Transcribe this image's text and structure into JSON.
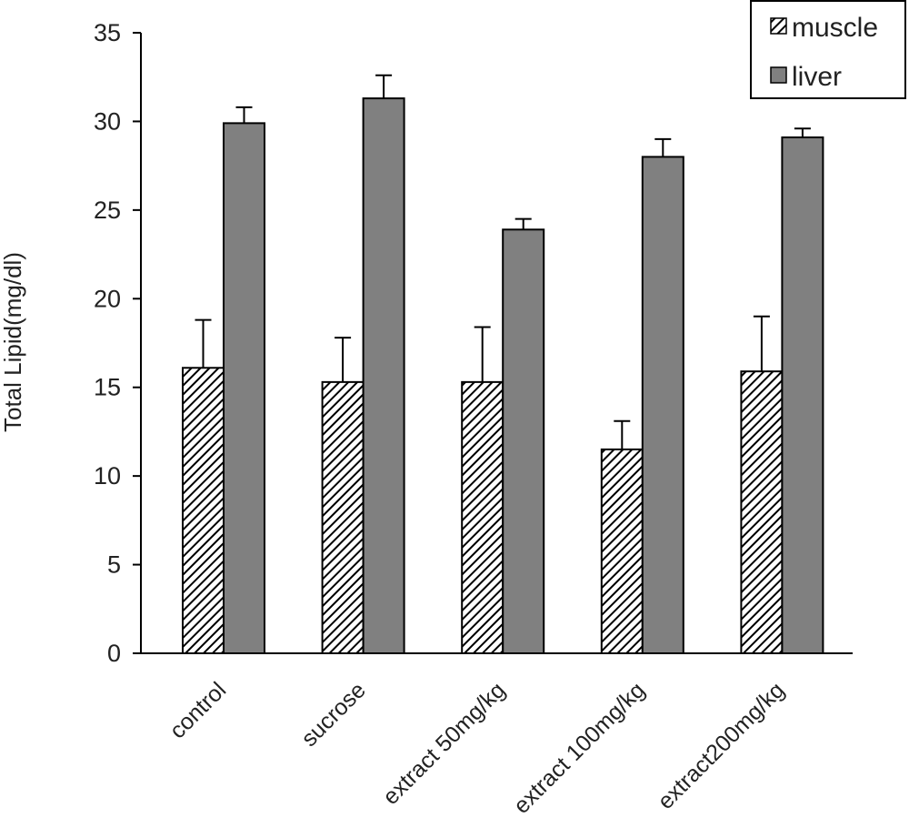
{
  "chart_data": {
    "type": "bar",
    "title": "",
    "xlabel": "",
    "ylabel": "Total Lipid(mg/dl)",
    "ylim": [
      0,
      35
    ],
    "yticks": [
      0,
      5,
      10,
      15,
      20,
      25,
      30,
      35
    ],
    "categories": [
      "control",
      "sucrose",
      "extract 50mg/kg",
      "extract 100mg/kg",
      "extract200mg/kg"
    ],
    "series": [
      {
        "name": "muscle",
        "values": [
          16.1,
          15.3,
          15.3,
          11.5,
          15.9
        ],
        "errors": [
          2.7,
          2.5,
          3.1,
          1.6,
          3.1
        ],
        "pattern": "diagonal-hatch",
        "color": "#000000"
      },
      {
        "name": "liver",
        "values": [
          29.9,
          31.3,
          23.9,
          28.0,
          29.1
        ],
        "errors": [
          0.9,
          1.3,
          0.6,
          1.0,
          0.5
        ],
        "pattern": "solid",
        "color": "#808080"
      }
    ],
    "legend_position": "top-right",
    "grid": false
  }
}
